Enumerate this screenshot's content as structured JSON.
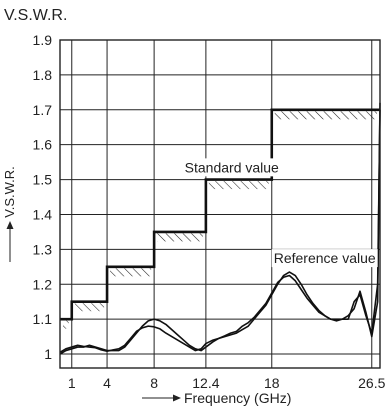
{
  "chart_data": {
    "type": "line",
    "title": "V.S.W.R.",
    "xlabel": "Frequency (GHz)",
    "ylabel": "V.S.W.R.",
    "x_tick_labels": [
      "1",
      "4",
      "8",
      "12.4",
      "18",
      "26.5"
    ],
    "x_ticks": [
      1,
      4,
      8,
      12.4,
      18,
      26.5
    ],
    "y_ticks": [
      1,
      1.1,
      1.2,
      1.3,
      1.4,
      1.5,
      1.6,
      1.7,
      1.8,
      1.9
    ],
    "y_tick_labels": [
      "1",
      "1.1",
      "1.2",
      "1.3",
      "1.4",
      "1.5",
      "1.6",
      "1.7",
      "1.8",
      "1.9"
    ],
    "ylim": [
      0.96,
      1.9
    ],
    "xlim": [
      0,
      27.2
    ],
    "grid": true,
    "standard": {
      "label": "Standard value",
      "steps": [
        {
          "from": 0,
          "to": 1,
          "value": 1.1
        },
        {
          "from": 1,
          "to": 4,
          "value": 1.15
        },
        {
          "from": 4,
          "to": 8,
          "value": 1.25
        },
        {
          "from": 8,
          "to": 12.4,
          "value": 1.35
        },
        {
          "from": 12.4,
          "to": 18,
          "value": 1.5
        },
        {
          "from": 18,
          "to": 27.2,
          "value": 1.7
        }
      ]
    },
    "reference": {
      "label": "Reference value",
      "series": [
        {
          "x": [
            0,
            0.5,
            1,
            1.5,
            2,
            2.5,
            3,
            3.5,
            4,
            4.5,
            5,
            5.5,
            6,
            6.5,
            7,
            7.5,
            8,
            8.5,
            9,
            9.5,
            10,
            10.5,
            11,
            11.5,
            12,
            12.4,
            13,
            13.5,
            14,
            14.5,
            15,
            15.5,
            16,
            16.5,
            17,
            17.5,
            18,
            18.5,
            19,
            19.5,
            20,
            20.5,
            21,
            21.5,
            22,
            22.5,
            23,
            23.5,
            24,
            24.5,
            25,
            25.5,
            26,
            26.5,
            27,
            27.2
          ],
          "y": [
            1.0,
            1.01,
            1.015,
            1.02,
            1.02,
            1.025,
            1.02,
            1.015,
            1.01,
            1.01,
            1.01,
            1.02,
            1.04,
            1.06,
            1.08,
            1.095,
            1.1,
            1.095,
            1.085,
            1.07,
            1.055,
            1.04,
            1.025,
            1.015,
            1.01,
            1.02,
            1.035,
            1.045,
            1.05,
            1.055,
            1.06,
            1.07,
            1.08,
            1.1,
            1.12,
            1.14,
            1.17,
            1.2,
            1.225,
            1.235,
            1.225,
            1.2,
            1.17,
            1.145,
            1.125,
            1.11,
            1.1,
            1.1,
            1.1,
            1.1,
            1.15,
            1.17,
            1.11,
            1.06,
            1.2,
            1.7
          ]
        },
        {
          "x": [
            0,
            0.5,
            1,
            1.5,
            2,
            2.5,
            3,
            3.5,
            4,
            4.5,
            5,
            5.5,
            6,
            6.5,
            7,
            7.5,
            8,
            8.5,
            9,
            9.5,
            10,
            10.5,
            11,
            11.5,
            12,
            12.4,
            13,
            13.5,
            14,
            14.5,
            15,
            15.5,
            16,
            16.5,
            17,
            17.5,
            18,
            18.5,
            19,
            19.5,
            20,
            20.5,
            21,
            21.5,
            22,
            22.5,
            23,
            23.5,
            24,
            24.5,
            25,
            25.5,
            26,
            26.5,
            27,
            27.2
          ],
          "y": [
            1.005,
            1.015,
            1.02,
            1.025,
            1.022,
            1.02,
            1.018,
            1.012,
            1.008,
            1.012,
            1.015,
            1.025,
            1.045,
            1.065,
            1.075,
            1.08,
            1.078,
            1.072,
            1.06,
            1.05,
            1.04,
            1.03,
            1.02,
            1.01,
            1.015,
            1.03,
            1.04,
            1.045,
            1.052,
            1.06,
            1.065,
            1.08,
            1.09,
            1.105,
            1.125,
            1.145,
            1.175,
            1.205,
            1.22,
            1.225,
            1.21,
            1.185,
            1.16,
            1.14,
            1.12,
            1.11,
            1.1,
            1.095,
            1.1,
            1.11,
            1.13,
            1.18,
            1.12,
            1.05,
            1.15,
            1.72
          ]
        }
      ]
    },
    "annotations": [
      {
        "text": "Standard value",
        "x": 14.6,
        "y": 1.535
      },
      {
        "text": "Reference value",
        "x": 22.5,
        "y": 1.275
      }
    ]
  }
}
